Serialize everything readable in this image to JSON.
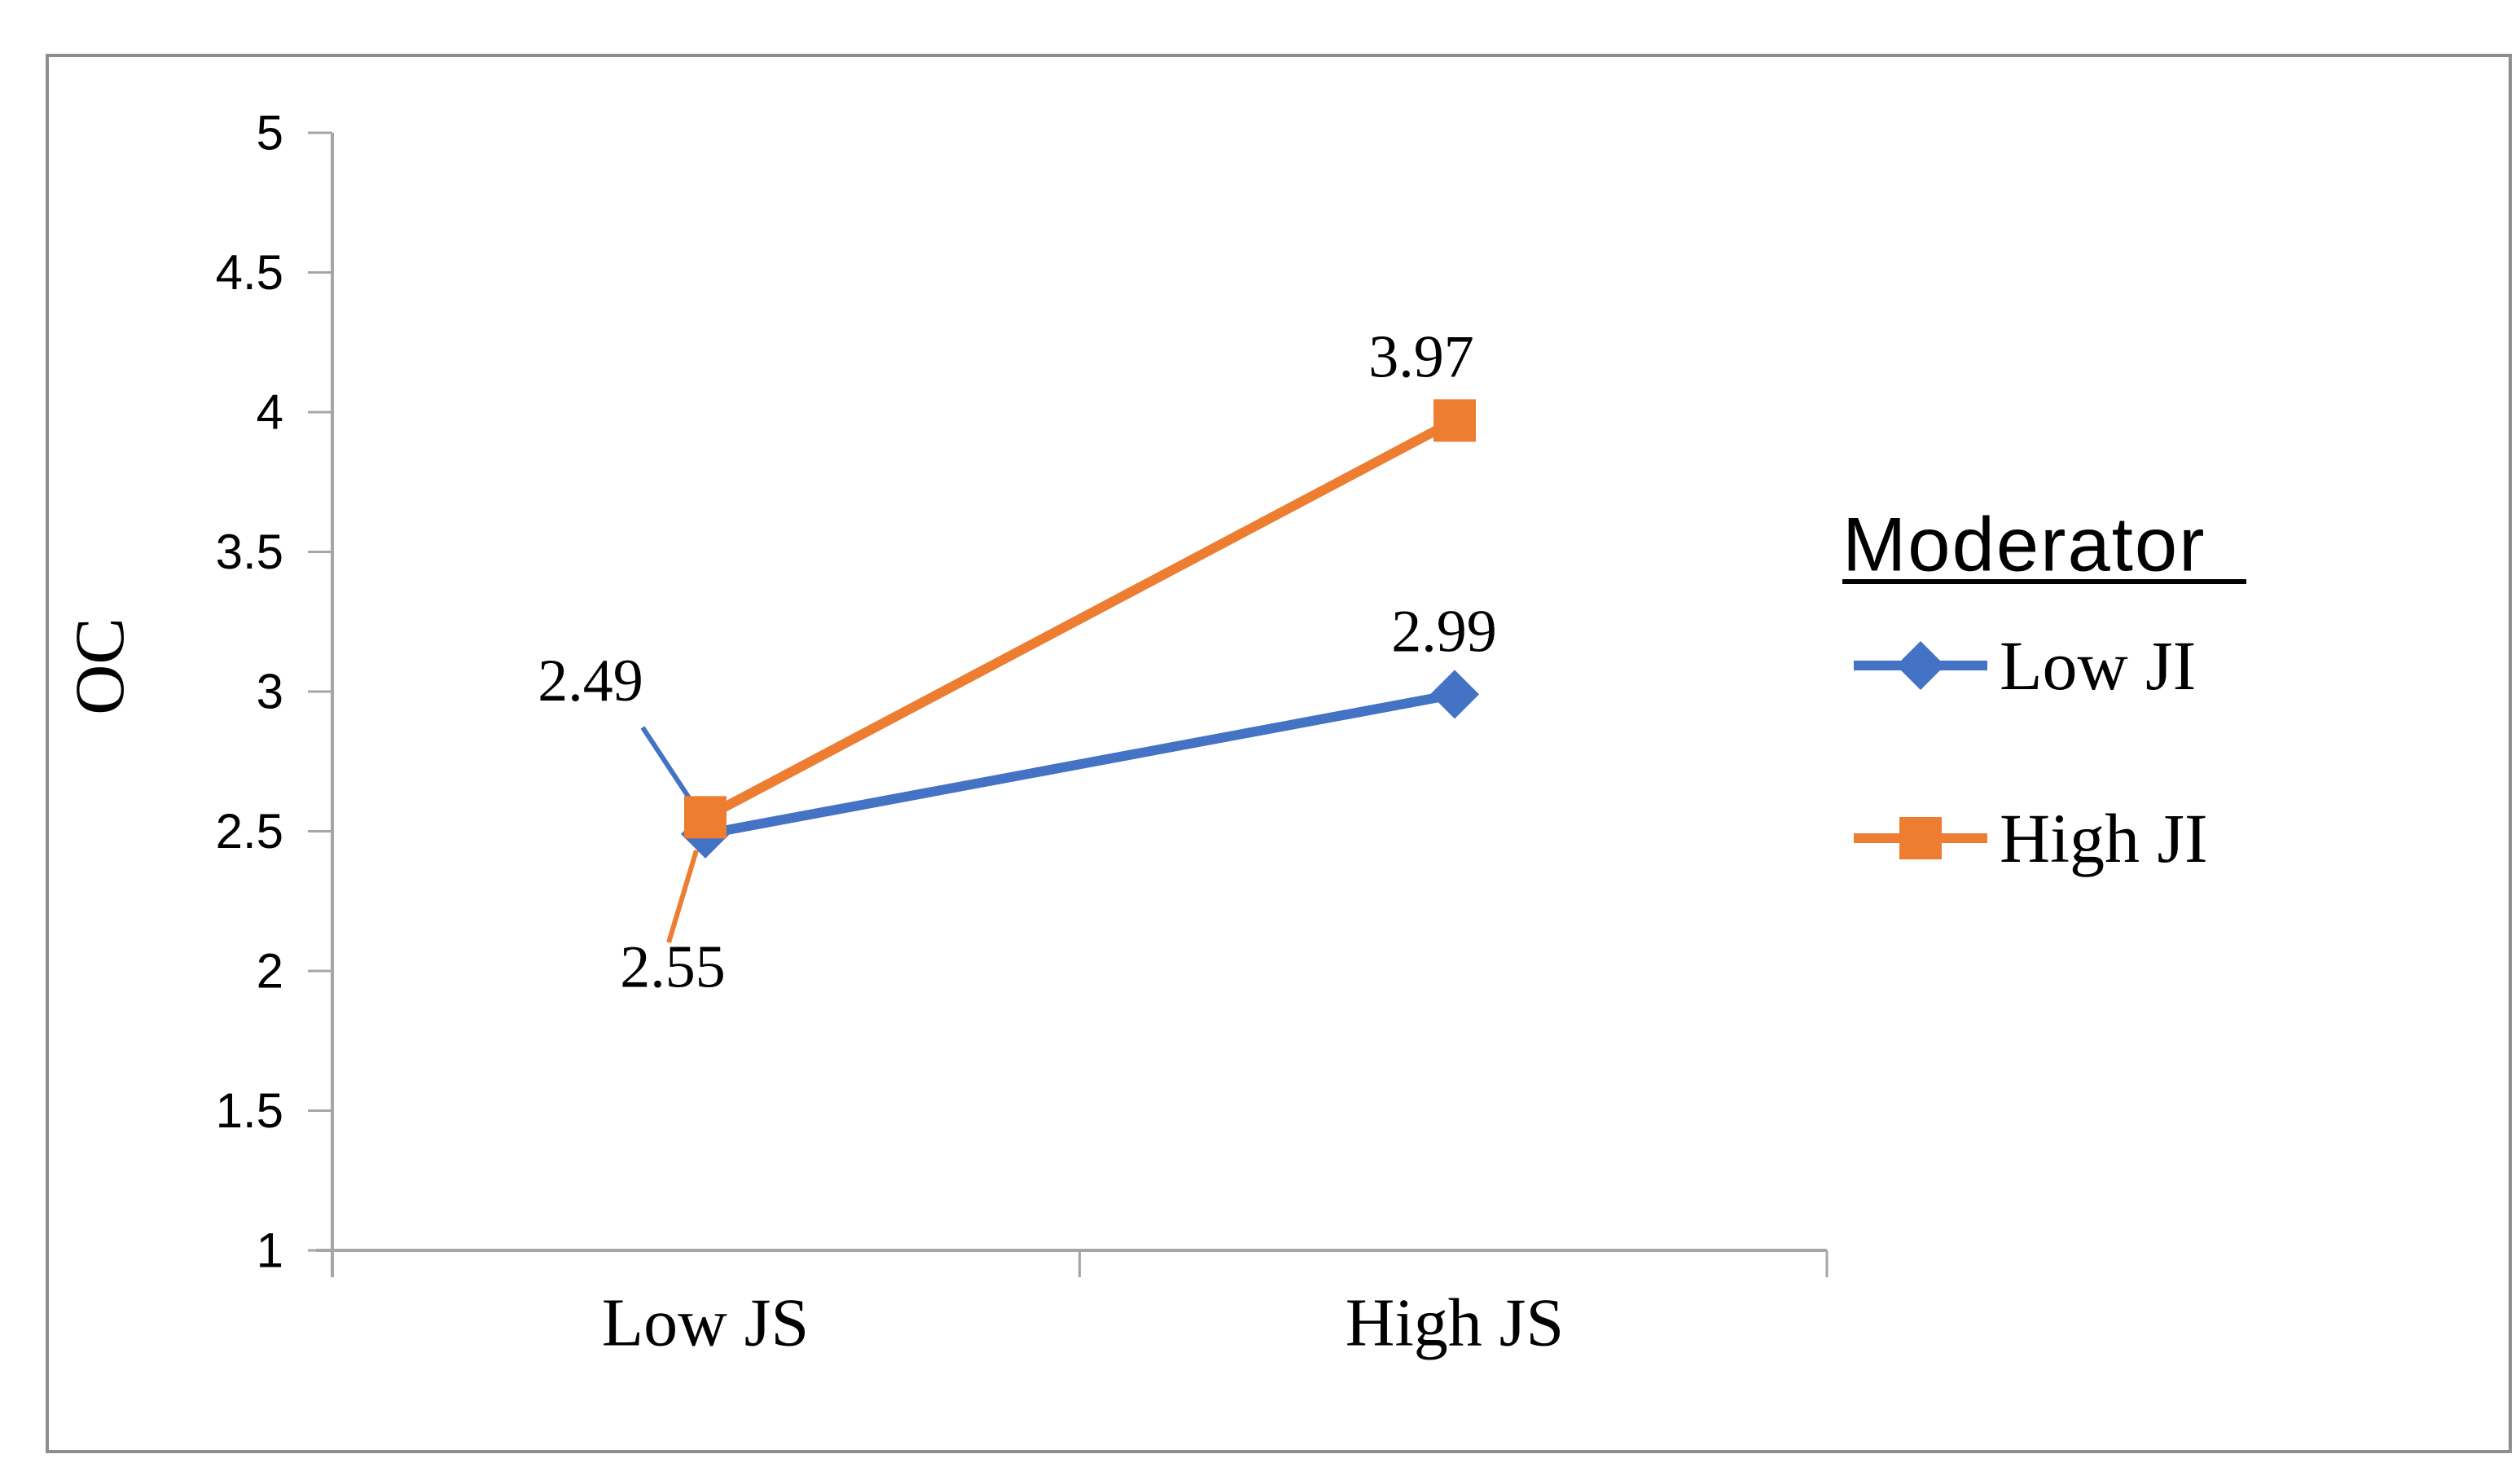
{
  "figure": {
    "background": "#ffffff",
    "border_color": "#8e8e8e"
  },
  "chart_data": {
    "type": "line",
    "title": "",
    "xlabel": "",
    "ylabel": "OC",
    "categories": [
      "Low JS",
      "High JS"
    ],
    "series": [
      {
        "name": "Low JI",
        "values": [
          2.49,
          2.99
        ],
        "data_labels": [
          "2.49",
          "2.99"
        ],
        "color": "#4472C4",
        "marker": "diamond"
      },
      {
        "name": "High JI",
        "values": [
          2.55,
          3.97
        ],
        "data_labels": [
          "2.55",
          "3.97"
        ],
        "color": "#ED7D31",
        "marker": "square"
      }
    ],
    "ylim": [
      1,
      5
    ],
    "yticks": [
      {
        "value": 5,
        "label": "5"
      },
      {
        "value": 4.5,
        "label": "4.5"
      },
      {
        "value": 4,
        "label": "4"
      },
      {
        "value": 3.5,
        "label": "3.5"
      },
      {
        "value": 3,
        "label": "3"
      },
      {
        "value": 2.5,
        "label": "2.5"
      },
      {
        "value": 2,
        "label": "2"
      },
      {
        "value": 1.5,
        "label": "1.5"
      },
      {
        "value": 1,
        "label": "1"
      }
    ],
    "grid": false,
    "legend": {
      "title": "Moderator",
      "position": "right",
      "entries": [
        "Low JI",
        "High JI"
      ]
    },
    "axis_color": "#A6A6A6",
    "text_color": "#000000"
  }
}
